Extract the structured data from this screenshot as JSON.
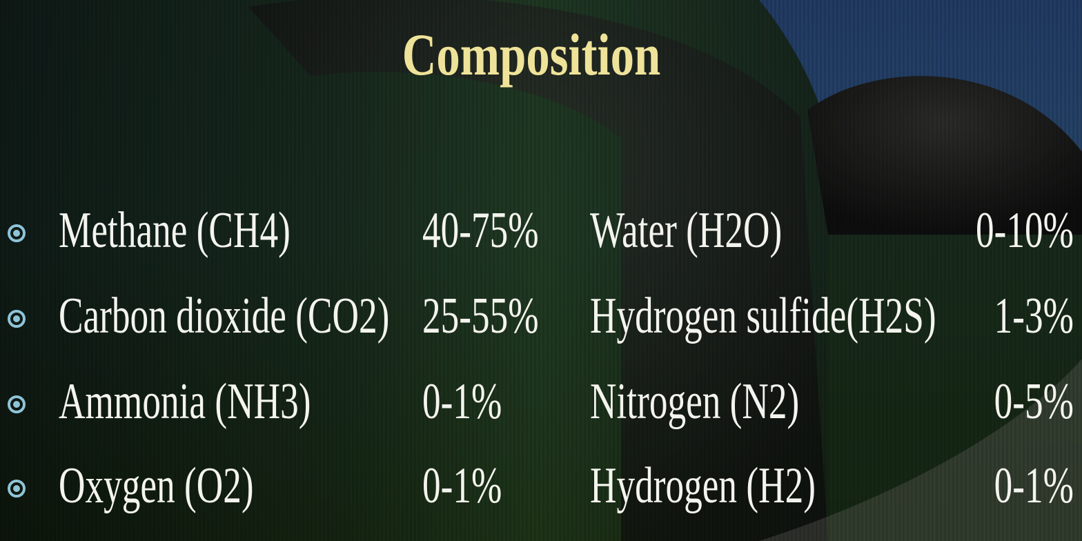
{
  "title": "Composition",
  "rows": [
    [
      "Methane (CH4)",
      "40-75%",
      "Water (H2O)",
      "0-10%"
    ],
    [
      "Carbon dioxide (CO2)",
      "25-55%",
      "Hydrogen sulfide(H2S)",
      "1-3%"
    ],
    [
      "Ammonia (NH3)",
      "0-1%",
      "Nitrogen (N2)",
      "0-5%"
    ],
    [
      "Oxygen (O2)",
      "0-1%",
      "Hydrogen (H2)",
      "0-1%"
    ]
  ]
}
